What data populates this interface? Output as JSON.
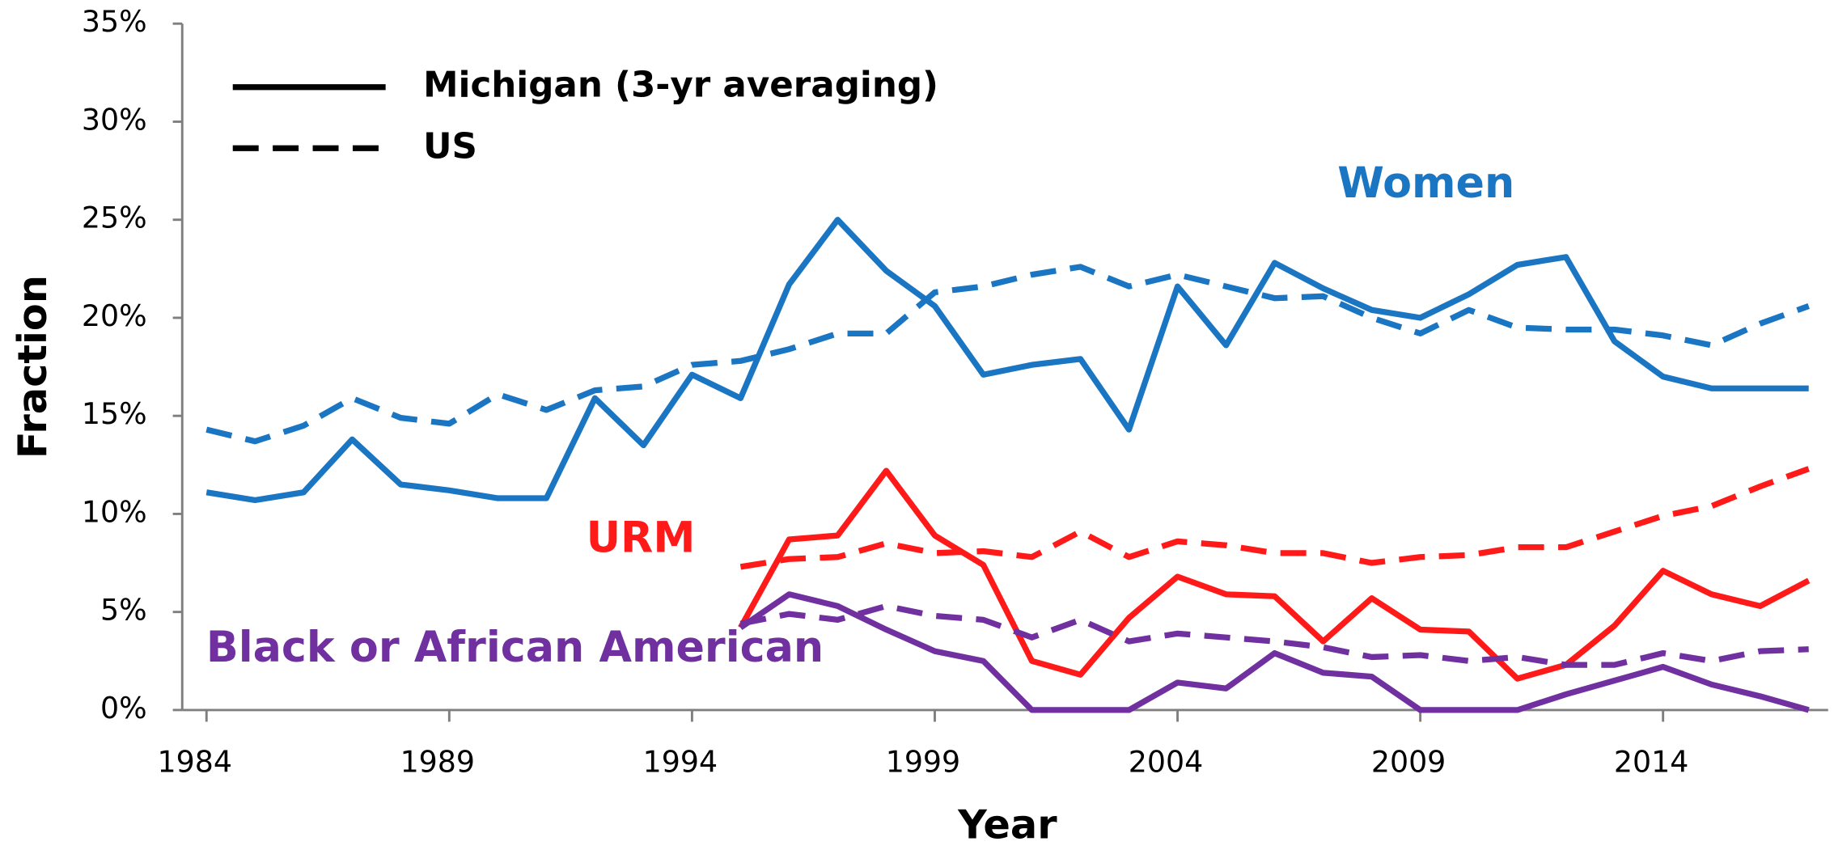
{
  "chart_data": {
    "type": "line",
    "xlabel": "Year",
    "ylabel": "Fraction",
    "x": [
      1984,
      1985,
      1986,
      1987,
      1988,
      1989,
      1990,
      1991,
      1992,
      1993,
      1994,
      1995,
      1996,
      1997,
      1998,
      1999,
      2000,
      2001,
      2002,
      2003,
      2004,
      2005,
      2006,
      2007,
      2008,
      2009,
      2010,
      2011,
      2012,
      2013,
      2014,
      2015,
      2016,
      2017
    ],
    "xlim": [
      1983.5,
      2017.4
    ],
    "xticks": [
      1984,
      1989,
      1994,
      1999,
      2004,
      2009,
      2014
    ],
    "ylim": [
      0,
      35
    ],
    "yticks": [
      {
        "value": 0,
        "label": "0%"
      },
      {
        "value": 5,
        "label": "5%"
      },
      {
        "value": 10,
        "label": "10%"
      },
      {
        "value": 15,
        "label": "15%"
      },
      {
        "value": 20,
        "label": "20%"
      },
      {
        "value": 25,
        "label": "25%"
      },
      {
        "value": 30,
        "label": "30%"
      },
      {
        "value": 35,
        "label": "35%"
      }
    ],
    "legend": [
      {
        "name": "Michigan (3-yr averaging)",
        "style": "solid"
      },
      {
        "name": "US",
        "style": "dashed"
      }
    ],
    "groups": [
      {
        "name": "Women",
        "color": "#1a75c2"
      },
      {
        "name": "URM",
        "color": "#ff1a1a"
      },
      {
        "name": "Black or African American",
        "color": "#7030a0"
      }
    ],
    "series": [
      {
        "group": 0,
        "style": "solid",
        "values": [
          11.1,
          10.7,
          11.1,
          13.8,
          11.5,
          11.2,
          10.8,
          10.8,
          15.9,
          13.5,
          17.1,
          15.9,
          21.7,
          25.0,
          22.4,
          20.6,
          17.1,
          17.6,
          17.9,
          14.3,
          21.6,
          18.6,
          22.8,
          21.5,
          20.4,
          20.0,
          21.2,
          22.7,
          23.1,
          18.8,
          17.0,
          16.4,
          16.4,
          16.4
        ]
      },
      {
        "group": 0,
        "style": "dashed",
        "values": [
          14.3,
          13.7,
          14.5,
          15.9,
          14.9,
          14.6,
          16.1,
          15.3,
          16.3,
          16.5,
          17.6,
          17.8,
          18.4,
          19.2,
          19.2,
          21.3,
          21.6,
          22.2,
          22.6,
          21.6,
          22.2,
          21.6,
          21.0,
          21.1,
          20.0,
          19.2,
          20.4,
          19.5,
          19.4,
          19.4,
          19.1,
          18.6,
          19.7,
          20.6
        ]
      },
      {
        "group": 1,
        "style": "solid",
        "values": [
          null,
          null,
          null,
          null,
          null,
          null,
          null,
          null,
          null,
          null,
          null,
          4.2,
          8.7,
          8.9,
          12.2,
          8.9,
          7.4,
          2.5,
          1.8,
          4.7,
          6.8,
          5.9,
          5.8,
          3.5,
          5.7,
          4.1,
          4.0,
          1.6,
          2.3,
          4.3,
          7.1,
          5.9,
          5.3,
          6.6
        ]
      },
      {
        "group": 1,
        "style": "dashed",
        "values": [
          null,
          null,
          null,
          null,
          null,
          null,
          null,
          null,
          null,
          null,
          null,
          7.3,
          7.7,
          7.8,
          8.5,
          8.0,
          8.1,
          7.8,
          9.1,
          7.8,
          8.6,
          8.4,
          8.0,
          8.0,
          7.5,
          7.8,
          7.9,
          8.3,
          8.3,
          9.1,
          9.9,
          10.4,
          11.4,
          12.3
        ]
      },
      {
        "group": 2,
        "style": "solid",
        "values": [
          null,
          null,
          null,
          null,
          null,
          null,
          null,
          null,
          null,
          null,
          null,
          4.2,
          5.9,
          5.3,
          4.1,
          3.0,
          2.5,
          0,
          0,
          0,
          1.4,
          1.1,
          2.9,
          1.9,
          1.7,
          0,
          0,
          0,
          0.8,
          1.5,
          2.2,
          1.3,
          0.7,
          0
        ]
      },
      {
        "group": 2,
        "style": "dashed",
        "values": [
          null,
          null,
          null,
          null,
          null,
          null,
          null,
          null,
          null,
          null,
          null,
          4.4,
          4.9,
          4.6,
          5.3,
          4.8,
          4.6,
          3.7,
          4.6,
          3.5,
          3.9,
          3.7,
          3.5,
          3.2,
          2.7,
          2.8,
          2.5,
          2.7,
          2.3,
          2.3,
          2.9,
          2.5,
          3.0,
          3.1
        ]
      }
    ]
  }
}
